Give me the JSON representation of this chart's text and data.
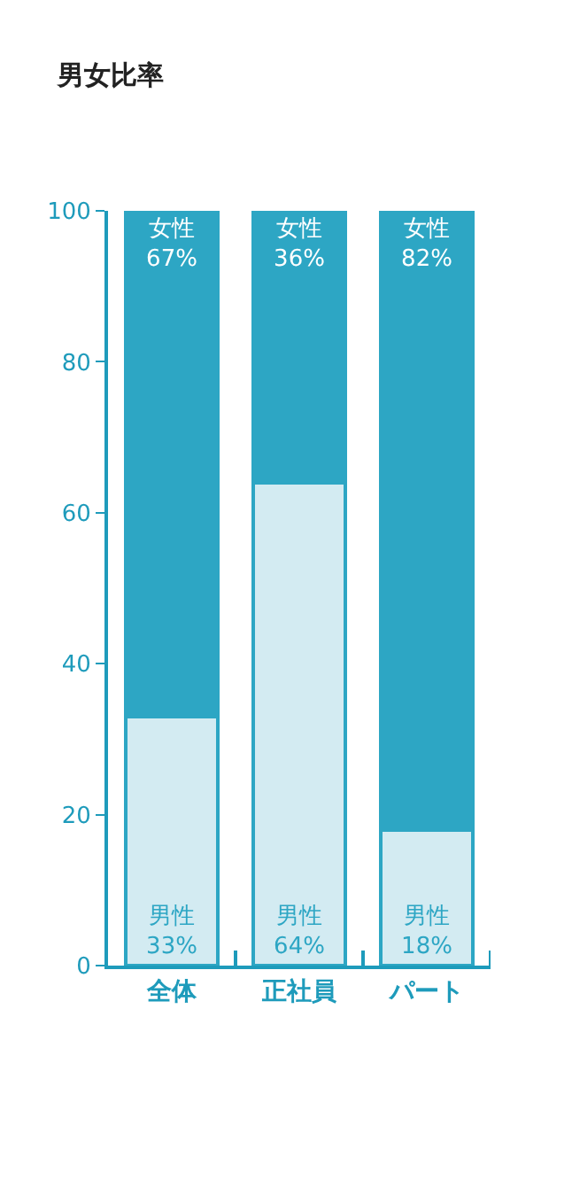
{
  "chart_data": {
    "type": "bar",
    "title": "男女比率",
    "stacked": true,
    "categories": [
      "全体",
      "正社員",
      "パート"
    ],
    "series": [
      {
        "name": "男性",
        "color": "#d3ebf2",
        "values": [
          33,
          64,
          18
        ],
        "value_labels": [
          "33%",
          "64%",
          "18%"
        ]
      },
      {
        "name": "女性",
        "color": "#2da6c4",
        "values": [
          67,
          36,
          82
        ],
        "value_labels": [
          "67%",
          "36%",
          "82%"
        ]
      }
    ],
    "ylim": [
      0,
      100
    ],
    "yticks": [
      0,
      20,
      40,
      60,
      80,
      100
    ],
    "legend": false
  }
}
